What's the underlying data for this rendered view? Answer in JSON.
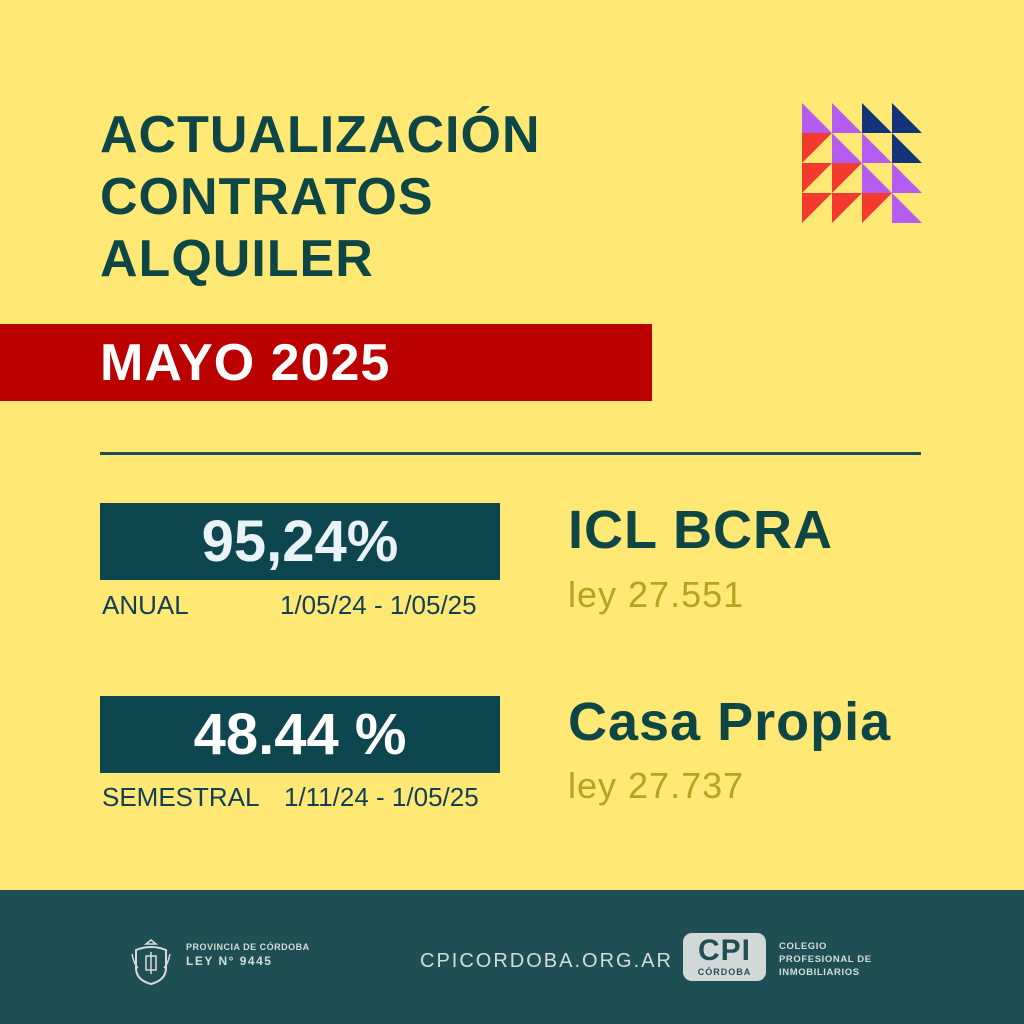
{
  "title_lines": [
    "ACTUALIZACIÓN",
    "CONTRATOS",
    "ALQUILER"
  ],
  "month": "MAYO 2025",
  "indices": [
    {
      "value": "95,24%",
      "period_label": "ANUAL",
      "range": "1/05/24 - 1/05/25",
      "name": "ICL  BCRA",
      "law": "ley 27.551"
    },
    {
      "value": "48.44 %",
      "period_label": "SEMESTRAL",
      "range": "1/11/24 - 1/05/25",
      "name": "Casa Propia",
      "law": "ley 27.737"
    }
  ],
  "footer": {
    "province_line1": "PROVINCIA DE CÓRDOBA",
    "province_line2": "LEY N° 9445",
    "website": "CPICORDOBA.ORG.AR",
    "cpi_abbr": "CPI",
    "cpi_city": "CÓRDOBA",
    "org_lines": [
      "COLEGIO",
      "PROFESIONAL DE",
      "INMOBILIARIOS"
    ]
  },
  "colors": {
    "background": "#FFE873",
    "title": "#0E4646",
    "month_band": "#BB0000",
    "value_box": "#0E4650",
    "law_text": "#B5A421",
    "footer": "#1F4F54",
    "triangle_purple": "#B45CF0",
    "triangle_red": "#F23A2E",
    "triangle_navy": "#12357A"
  },
  "icons": [
    "triangle-pattern-logo",
    "coat-of-arms-icon"
  ]
}
